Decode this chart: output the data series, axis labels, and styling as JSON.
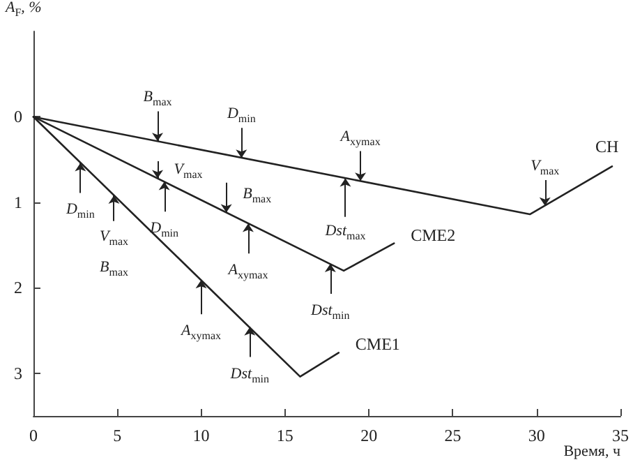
{
  "chart_data": {
    "type": "line",
    "xlabel": "Время, ч",
    "ylabel": "A$_{F}$, %",
    "xlim": [
      0,
      35
    ],
    "xticks": [
      0,
      5,
      10,
      15,
      20,
      25,
      30,
      35
    ],
    "ylim": [
      3.5,
      -1
    ],
    "yticks": [
      0,
      1,
      2,
      3
    ],
    "grid": false,
    "legend": false,
    "marker": "none",
    "line_style": "solid",
    "series": [
      {
        "name": "CH",
        "color": "#222222",
        "x": [
          0,
          29.6,
          34.5
        ],
        "values": [
          0,
          1.14,
          0.58
        ]
      },
      {
        "name": "CME2",
        "color": "#222222",
        "x": [
          0,
          18.5,
          21.5
        ],
        "values": [
          0,
          1.8,
          1.48
        ]
      },
      {
        "name": "CME1",
        "color": "#222222",
        "x": [
          0,
          15.9,
          18.2
        ],
        "values": [
          0,
          3.04,
          2.76
        ]
      }
    ],
    "annotations": [
      {
        "text": "B$_{max}$",
        "x": 7.4,
        "y": 0.285
      },
      {
        "text": "D$_{min}$",
        "x": 12.4,
        "y": 0.48
      },
      {
        "text": "A$_{xymax}$",
        "x": 19.5,
        "y": 0.75
      },
      {
        "text": "Dst$_{max}$",
        "x": 18.6,
        "y": 0.72
      },
      {
        "text": "V$_{max}$",
        "x": 30.5,
        "y": 1.04
      },
      {
        "text": "V$_{max}$",
        "x": 7.4,
        "y": 0.72
      },
      {
        "text": "D$_{min}$",
        "x": 7.8,
        "y": 0.76
      },
      {
        "text": "B$_{max}$",
        "x": 11.5,
        "y": 1.12
      },
      {
        "text": "A$_{xymax}$",
        "x": 12.8,
        "y": 1.25
      },
      {
        "text": "Dst$_{min}$",
        "x": 17.7,
        "y": 1.72
      },
      {
        "text": "D$_{min}$",
        "x": 2.8,
        "y": 0.54
      },
      {
        "text": "V$_{max}$\nB$_{max}$",
        "x": 4.8,
        "y": 0.92
      },
      {
        "text": "A$_{xymax}$",
        "x": 10,
        "y": 1.91
      },
      {
        "text": "Dst$_{min}$",
        "x": 12.9,
        "y": 2.46
      }
    ]
  }
}
